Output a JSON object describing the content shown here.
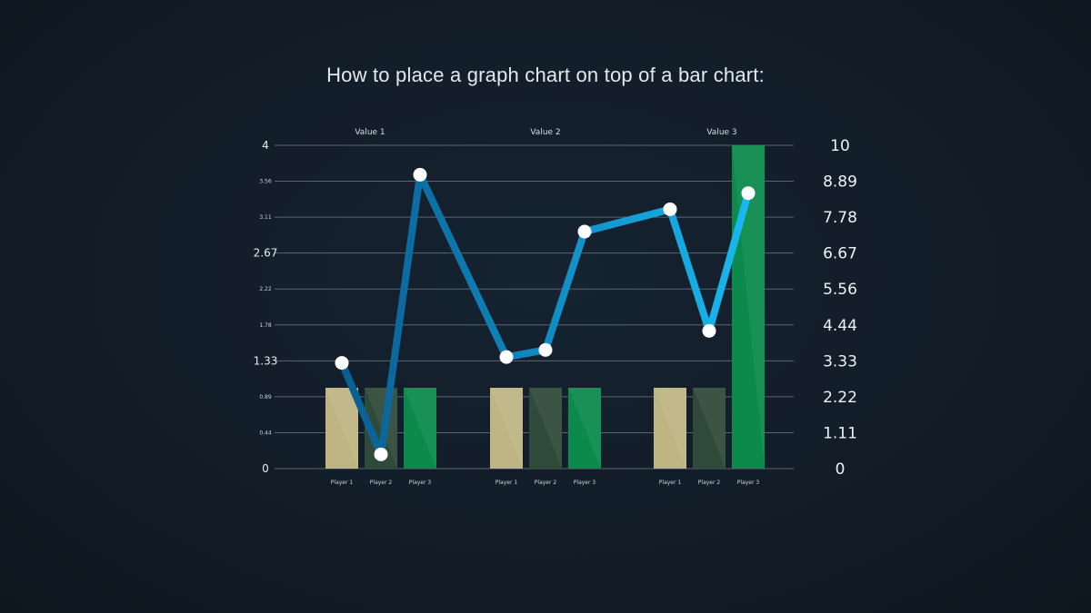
{
  "chart_data": {
    "type": "bar",
    "title": "How to place a graph chart on top of a bar chart:",
    "groups": [
      "Value 1",
      "Value 2",
      "Value 3"
    ],
    "categories": [
      "Player 1",
      "Player 2",
      "Player 3"
    ],
    "y_left": {
      "range": [
        0,
        4
      ],
      "ticks": [
        "4",
        "3.56",
        "3.11",
        "2.67",
        "2.22",
        "1.78",
        "1.33",
        "0.89",
        "0.44",
        "0"
      ],
      "major": [
        "4",
        "2.67",
        "1.33",
        "0"
      ]
    },
    "y_right": {
      "range": [
        0,
        10
      ],
      "ticks": [
        "10",
        "8.89",
        "7.78",
        "6.67",
        "5.56",
        "4.44",
        "3.33",
        "2.22",
        "1.11",
        "0"
      ]
    },
    "bars": [
      {
        "group": "Value 1",
        "values": [
          1,
          1,
          1
        ]
      },
      {
        "group": "Value 2",
        "values": [
          1,
          1,
          1
        ]
      },
      {
        "group": "Value 3",
        "values": [
          1,
          1,
          4
        ]
      }
    ],
    "bar_colors": [
      "#bfb583",
      "#2f4a39",
      "#0b8a4c"
    ],
    "line": {
      "axis": "right",
      "color_start": "#0a5d92",
      "color_end": "#18b8f0",
      "points": [
        {
          "group": "Value 1",
          "y": 3.27
        },
        {
          "group": "Value 1",
          "y": 0.44
        },
        {
          "group": "Value 1",
          "y": 9.09
        },
        {
          "group": "Value 2",
          "y": 3.45
        },
        {
          "group": "Value 2",
          "y": 3.67
        },
        {
          "group": "Value 2",
          "y": 7.33
        },
        {
          "group": "Value 3",
          "y": 8.02
        },
        {
          "group": "Value 3",
          "y": 4.26
        },
        {
          "group": "Value 3",
          "y": 8.52
        }
      ]
    },
    "grid": true,
    "legend": "none"
  }
}
